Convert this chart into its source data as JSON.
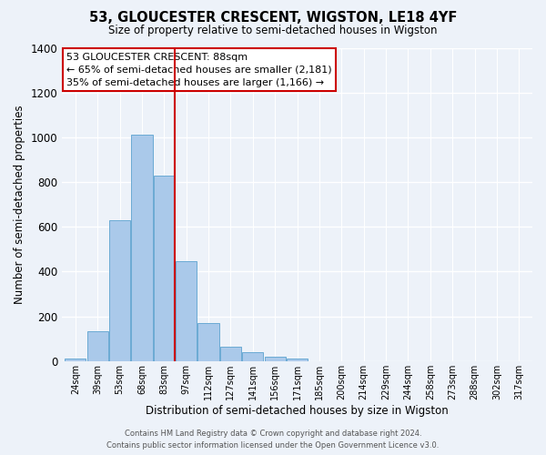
{
  "title": "53, GLOUCESTER CRESCENT, WIGSTON, LE18 4YF",
  "subtitle": "Size of property relative to semi-detached houses in Wigston",
  "xlabel": "Distribution of semi-detached houses by size in Wigston",
  "ylabel": "Number of semi-detached properties",
  "footer_line1": "Contains HM Land Registry data © Crown copyright and database right 2024.",
  "footer_line2": "Contains public sector information licensed under the Open Government Licence v3.0.",
  "annotation_title": "53 GLOUCESTER CRESCENT: 88sqm",
  "annotation_line2": "← 65% of semi-detached houses are smaller (2,181)",
  "annotation_line3": "35% of semi-detached houses are larger (1,166) →",
  "bin_labels": [
    "24sqm",
    "39sqm",
    "53sqm",
    "68sqm",
    "83sqm",
    "97sqm",
    "112sqm",
    "127sqm",
    "141sqm",
    "156sqm",
    "171sqm",
    "185sqm",
    "200sqm",
    "214sqm",
    "229sqm",
    "244sqm",
    "258sqm",
    "273sqm",
    "288sqm",
    "302sqm",
    "317sqm"
  ],
  "bar_values": [
    10,
    135,
    630,
    1010,
    830,
    445,
    170,
    65,
    40,
    20,
    10,
    0,
    0,
    0,
    0,
    0,
    0,
    0,
    0,
    0,
    0
  ],
  "bar_color": "#aac9ea",
  "bar_edge_color": "#6aaad4",
  "vline_color": "#cc0000",
  "box_edge_color": "#cc0000",
  "background_color": "#edf2f9",
  "grid_color": "#ffffff",
  "ylim": [
    0,
    1400
  ],
  "yticks": [
    0,
    200,
    400,
    600,
    800,
    1000,
    1200,
    1400
  ],
  "vline_bin_index": 5
}
